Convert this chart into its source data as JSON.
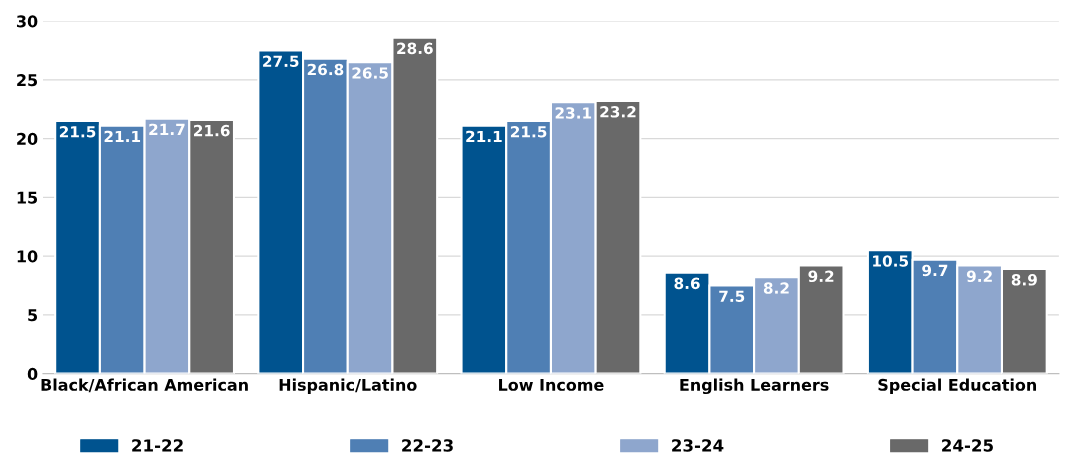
{
  "chart_data": {
    "type": "bar",
    "categories": [
      "Black/African American",
      "Hispanic/Latino",
      "Low Income",
      "English Learners",
      "Special Education"
    ],
    "series": [
      {
        "name": "21-22",
        "color": "#00538f",
        "values": [
          21.5,
          27.5,
          21.1,
          8.6,
          10.5
        ]
      },
      {
        "name": "22-23",
        "color": "#4f7fb4",
        "values": [
          21.1,
          26.8,
          21.5,
          7.5,
          9.7
        ]
      },
      {
        "name": "23-24",
        "color": "#8ea6cd",
        "values": [
          21.7,
          26.5,
          23.1,
          8.2,
          9.2
        ]
      },
      {
        "name": "24-25",
        "color": "#696969",
        "values": [
          21.6,
          28.6,
          23.2,
          9.2,
          8.9
        ]
      }
    ],
    "ylim": [
      0,
      30
    ],
    "yticks": [
      0,
      5,
      10,
      15,
      20,
      25,
      30
    ],
    "grid": "y",
    "legend": "bottom",
    "data_labels": true
  }
}
